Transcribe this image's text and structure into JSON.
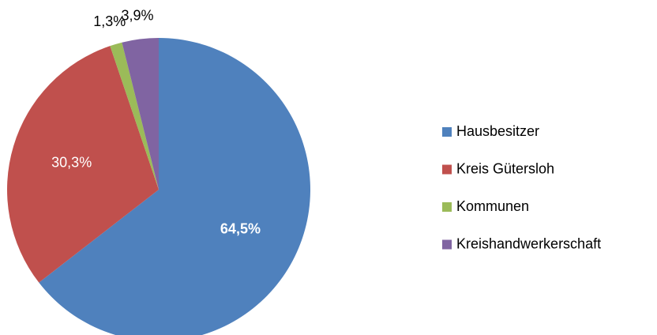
{
  "chart_data": {
    "type": "pie",
    "categories": [
      "Hausbesitzer",
      "Kreis Gütersloh",
      "Kommunen",
      "Kreishandwerkerschaft"
    ],
    "values": [
      64.5,
      30.3,
      1.3,
      3.9
    ],
    "value_labels": [
      "64,5%",
      "30,3%",
      "1,3%",
      "3,9%"
    ],
    "colors": [
      "#4f81bd",
      "#c0504d",
      "#9bbb59",
      "#8064a2"
    ],
    "legend": "right"
  }
}
